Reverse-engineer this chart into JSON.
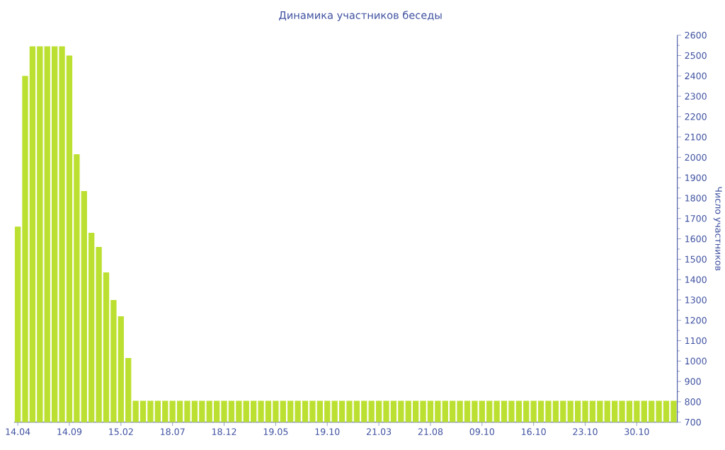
{
  "chart_data": {
    "type": "bar",
    "title": "Динамика участников беседы",
    "ylabel": "Число участников",
    "categories": [
      "14.04",
      null,
      null,
      null,
      null,
      null,
      null,
      "14.09",
      null,
      null,
      null,
      null,
      null,
      null,
      "15.02",
      null,
      null,
      null,
      null,
      null,
      null,
      "18.07",
      null,
      null,
      null,
      null,
      null,
      null,
      "18.12",
      null,
      null,
      null,
      null,
      null,
      null,
      "19.05",
      null,
      null,
      null,
      null,
      null,
      null,
      "19.10",
      null,
      null,
      null,
      null,
      null,
      null,
      "21.03",
      null,
      null,
      null,
      null,
      null,
      null,
      "21.08",
      null,
      null,
      null,
      null,
      null,
      null,
      "09.10",
      null,
      null,
      null,
      null,
      null,
      null,
      "16.10",
      null,
      null,
      null,
      null,
      null,
      null,
      "23.10",
      null,
      null,
      null,
      null,
      null,
      null,
      "30.10",
      null,
      null,
      null,
      null,
      null
    ],
    "values": [
      1660,
      2400,
      2545,
      2545,
      2545,
      2545,
      2545,
      2500,
      2015,
      1835,
      1630,
      1560,
      1435,
      1300,
      1220,
      1015,
      805,
      805,
      805,
      805,
      805,
      805,
      805,
      805,
      805,
      805,
      805,
      805,
      805,
      805,
      805,
      805,
      805,
      805,
      805,
      805,
      805,
      805,
      805,
      805,
      805,
      805,
      805,
      805,
      805,
      805,
      805,
      805,
      805,
      805,
      805,
      805,
      805,
      805,
      805,
      805,
      805,
      805,
      805,
      805,
      805,
      805,
      805,
      805,
      805,
      805,
      805,
      805,
      805,
      805,
      805,
      805,
      805,
      805,
      805,
      805,
      805,
      805,
      805,
      805,
      805,
      805,
      805,
      805,
      805,
      805,
      805,
      805,
      805,
      805
    ],
    "color": "#bce031",
    "ylim": [
      700,
      2600
    ],
    "yticks": [
      700,
      800,
      900,
      1000,
      1100,
      1200,
      1300,
      1400,
      1500,
      1600,
      1700,
      1800,
      1900,
      2000,
      2100,
      2200,
      2300,
      2400,
      2500,
      2600
    ],
    "grid": false
  }
}
